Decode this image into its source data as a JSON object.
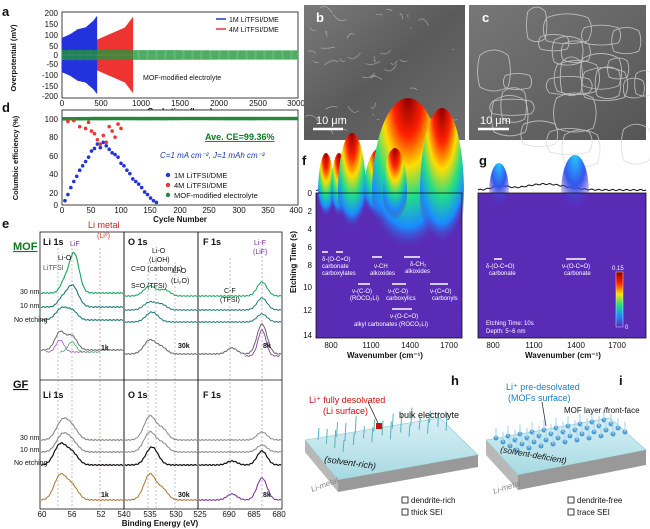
{
  "panels": {
    "a": "a",
    "b": "b",
    "c": "c",
    "d": "d",
    "e": "e",
    "f": "f",
    "g": "g",
    "h": "h",
    "i": "i"
  },
  "panel_a": {
    "ylabel": "Overpotential (mV)",
    "xlabel": "Cycle time (hour)",
    "legend": [
      "1M LiTFSI/DME",
      "4M LiTFSI/DME"
    ],
    "series_label": "MOF-modified electrolyte"
  },
  "panel_b": {
    "scale": "10 μm"
  },
  "panel_c": {
    "scale": "10 μm"
  },
  "panel_d": {
    "ylabel": "Columbic efficiency (%)",
    "xlabel": "Cycle Number",
    "ce_note": "Ave. CE=99.36%",
    "conditions": "C=1 mA cm⁻², J=1 mAh cm⁻²",
    "legend": [
      "1M LiTFSI/DME",
      "4M LiTFSI/DME",
      "MOF-modified electrolyte"
    ]
  },
  "panel_e": {
    "mof_label": "MOF",
    "gf_label": "GF",
    "li1s": "Li 1s",
    "o1s": "O 1s",
    "f1s": "F 1s",
    "li_metal": "Li metal",
    "li0": "(Li⁰)",
    "lif": "LiF",
    "lio": "Li-O",
    "litfsi": "LiTFSI",
    "co_carbonyls": "C=O (carbonyls)",
    "so_tfsi": "S=O (TFSI)",
    "lio_lioh": "Li-O",
    "lioh": "(LiOH)",
    "lio_li2o": "Li-O",
    "li2o": "(Li₂O)",
    "cf": "C-F",
    "tfsi": "(TFSI)",
    "lif_f": "Li-F",
    "lif_f2": "(LiF)",
    "depths": [
      "30 nm",
      "10 nm",
      "No etching"
    ],
    "scales": {
      "li": "1k",
      "o": "30k",
      "f": "8k"
    },
    "xlabel": "Binding Energy (eV)"
  },
  "panel_f": {
    "ylabel": "Etching Time (s)",
    "xlabel": "Wavenumber (cm⁻¹)",
    "labels": {
      "l1": "δ-(O-C=O)",
      "l2": "carbonate",
      "l3": "carboxylates",
      "l4": "ν-CH",
      "l5": "alkoxides",
      "l6": "δ-CH₂",
      "l7": "alkoxides",
      "l8": "ν-(C-O)",
      "l9": "(ROCO₂Li)",
      "l10": "ν-(C-O)",
      "l11": "carboxylics",
      "l12": "ν-(C=O)",
      "l13": "carbonyls",
      "l14": "ν-(O-C=O)",
      "l15": "alkyl carbonates (ROCO₂Li)"
    }
  },
  "panel_g": {
    "xlabel": "Wavenumber (cm⁻¹)",
    "l1": "δ-(O-C=O)",
    "l2": "carbonate",
    "l3": "ν-(O-C=O)",
    "l4": "carbonate",
    "etch_info": "Etching Time: 10s",
    "depth_info": "Depth: 5~6 nm",
    "cbar_max": "0.15",
    "cbar_min": "0"
  },
  "panel_h": {
    "title1": "Li⁺ fully desolvated",
    "title2": "(Li surface)",
    "bulk": "bulk electrolyte",
    "solvent": "(solvent-rich)",
    "metal": "Li-metal",
    "leg1": "dendrite-rich",
    "leg2": "thick SEI"
  },
  "panel_i": {
    "title1": "Li⁺ pre-desolvated",
    "title2": "(MOFs surface)",
    "mof": "MOF layer /front-face",
    "solvent": "(solvent-deficient)",
    "metal": "Li-metal",
    "leg1": "dendrite-free",
    "leg2": "trace SEI"
  },
  "chart_data": [
    {
      "type": "line",
      "title": "",
      "xlabel": "Cycle time (hour)",
      "ylabel": "Overpotential (mV)",
      "xlim": [
        0,
        3000
      ],
      "ylim": [
        -250,
        250
      ],
      "series": [
        {
          "name": "1M LiTFSI/DME",
          "x": [
            0,
            100,
            200,
            300,
            400,
            450
          ],
          "y_amplitude": [
            100,
            120,
            150,
            160,
            200,
            230
          ]
        },
        {
          "name": "4M LiTFSI/DME",
          "x": [
            0,
            200,
            400,
            600,
            800,
            900
          ],
          "y_amplitude": [
            40,
            60,
            80,
            120,
            160,
            220
          ]
        },
        {
          "name": "MOF-modified electrolyte",
          "x": [
            0,
            500,
            1000,
            1500,
            2000,
            2500,
            3000
          ],
          "y_amplitude": [
            30,
            30,
            28,
            28,
            27,
            27,
            27
          ]
        }
      ]
    },
    {
      "type": "scatter",
      "title": "",
      "xlabel": "Cycle Number",
      "ylabel": "Columbic efficiency (%)",
      "xlim": [
        0,
        400
      ],
      "ylim": [
        0,
        100
      ],
      "series": [
        {
          "name": "1M LiTFSI/DME",
          "x": [
            5,
            10,
            15,
            20,
            25,
            30,
            35,
            40,
            45,
            50,
            55,
            60,
            65,
            70,
            75,
            80,
            85,
            90,
            95,
            100,
            105,
            110,
            115,
            120,
            125,
            130,
            135,
            140,
            145,
            150,
            155,
            160
          ],
          "y": [
            5,
            12,
            20,
            27,
            33,
            40,
            45,
            50,
            55,
            62,
            65,
            70,
            66,
            72,
            68,
            64,
            60,
            58,
            55,
            48,
            45,
            40,
            36,
            30,
            27,
            24,
            20,
            15,
            12,
            8,
            5,
            3
          ]
        },
        {
          "name": "4M LiTFSI/DME",
          "x": [
            10,
            20,
            30,
            40,
            45,
            50,
            55,
            60,
            65,
            70,
            75,
            80,
            85,
            90,
            95,
            100
          ],
          "y": [
            96,
            97,
            90,
            88,
            95,
            85,
            82,
            75,
            70,
            80,
            72,
            90,
            85,
            78,
            93,
            88
          ]
        },
        {
          "name": "MOF-modified electrolyte",
          "x": [
            0,
            50,
            100,
            150,
            200,
            250,
            300,
            350,
            400
          ],
          "y": [
            99,
            99.3,
            99.4,
            99.3,
            99.4,
            99.4,
            99.3,
            99.4,
            99.4
          ]
        }
      ]
    }
  ]
}
